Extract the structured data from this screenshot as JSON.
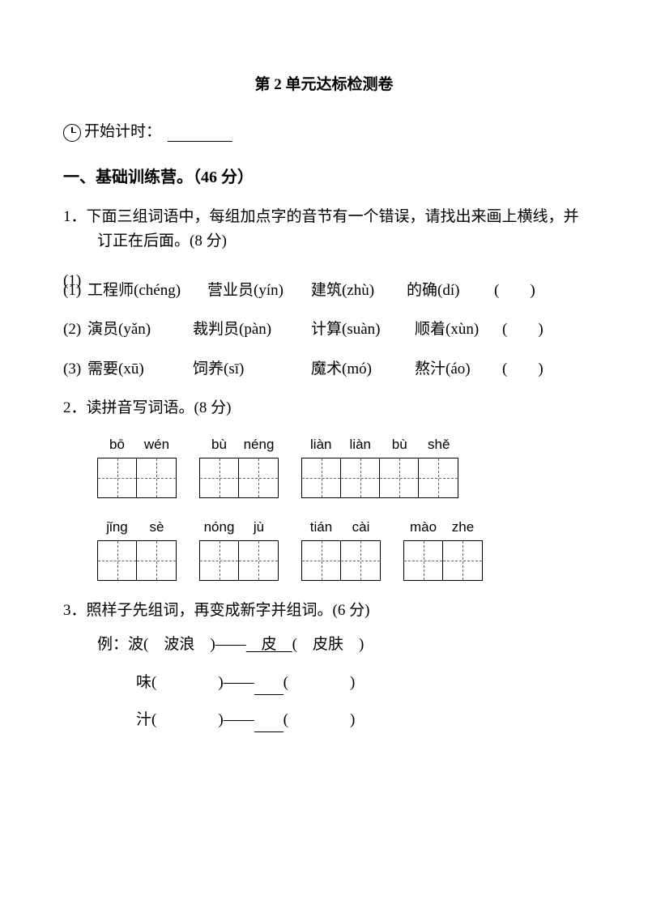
{
  "title": "第 2 单元达标检测卷",
  "timer_label": "开始计时：",
  "section1": {
    "header": "一、基础训练营。（46 分）",
    "q1": {
      "text": "1．下面三组词语中，每组加点字的音节有一个错误，请找出来画上横线，并订正在后面。(8 分)",
      "rows": [
        {
          "num": "(1)",
          "a": "工程师(chéng)",
          "b": "营业员(yín)",
          "c": "建筑(zhù)",
          "d": "的确(dí)",
          "paren": "(　　)"
        },
        {
          "num": "(2)",
          "a": "演员(yǎn)",
          "b": "裁判员(pàn)",
          "c": "计算(suàn)",
          "d": "顺着(xùn)",
          "paren": "(　　)"
        },
        {
          "num": "(3)",
          "a": "需要(xū)",
          "b": "饲养(sī)",
          "c": "魔术(mó)",
          "d": "熬汁(áo)",
          "paren": "(　　)"
        }
      ]
    },
    "q2": {
      "text": "2．读拼音写词语。(8 分)",
      "row1": [
        {
          "pinyin": [
            "bō",
            "wén"
          ],
          "cells": 2
        },
        {
          "pinyin": [
            "bù",
            "néng"
          ],
          "cells": 2
        },
        {
          "pinyin": [
            "liàn",
            "liàn",
            "bù",
            "shě"
          ],
          "cells": 4
        }
      ],
      "row2": [
        {
          "pinyin": [
            "jǐng",
            "sè"
          ],
          "cells": 2
        },
        {
          "pinyin": [
            "nóng",
            "jù"
          ],
          "cells": 2
        },
        {
          "pinyin": [
            "tián",
            "cài"
          ],
          "cells": 2
        },
        {
          "pinyin": [
            "mào",
            "zhe"
          ],
          "cells": 2
        }
      ]
    },
    "q3": {
      "text": "3．照样子先组词，再变成新字并组词。(6 分)",
      "example_label": "例：波(　波浪　)——",
      "example_char": "皮",
      "example_word": "(　皮肤　)",
      "lines": [
        {
          "char": "味",
          "blank1": "(　　　　)——",
          "blank2": "(　　　　)"
        },
        {
          "char": "汁",
          "blank1": "(　　　　)——",
          "blank2": "(　　　　)"
        }
      ]
    }
  }
}
